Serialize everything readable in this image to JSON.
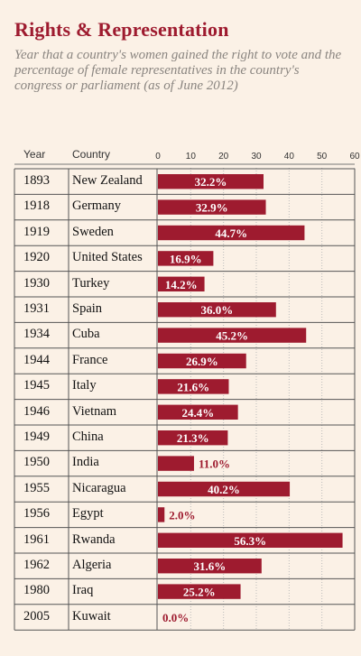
{
  "title": "Rights & Representation",
  "subtitle": "Year that a country's women gained the right to vote and the percentage of female representatives in the country's congress or parliament (as of June 2012)",
  "headers": {
    "year": "Year",
    "country": "Country"
  },
  "colors": {
    "accent": "#9e1b2f",
    "background": "#fbf1e6",
    "subtitle": "#8a8580"
  },
  "chart_data": {
    "type": "bar",
    "orientation": "horizontal",
    "xlim": [
      0,
      60
    ],
    "xticks": [
      "0",
      "10",
      "20",
      "30",
      "40",
      "50",
      "60"
    ],
    "grid": true,
    "rows": [
      {
        "year": "1893",
        "country": "New Zealand",
        "value": 32.2,
        "label": "32.2%"
      },
      {
        "year": "1918",
        "country": "Germany",
        "value": 32.9,
        "label": "32.9%"
      },
      {
        "year": "1919",
        "country": "Sweden",
        "value": 44.7,
        "label": "44.7%"
      },
      {
        "year": "1920",
        "country": "United States",
        "value": 16.9,
        "label": "16.9%"
      },
      {
        "year": "1930",
        "country": "Turkey",
        "value": 14.2,
        "label": "14.2%"
      },
      {
        "year": "1931",
        "country": "Spain",
        "value": 36.0,
        "label": "36.0%"
      },
      {
        "year": "1934",
        "country": "Cuba",
        "value": 45.2,
        "label": "45.2%"
      },
      {
        "year": "1944",
        "country": "France",
        "value": 26.9,
        "label": "26.9%"
      },
      {
        "year": "1945",
        "country": "Italy",
        "value": 21.6,
        "label": "21.6%"
      },
      {
        "year": "1946",
        "country": "Vietnam",
        "value": 24.4,
        "label": "24.4%"
      },
      {
        "year": "1949",
        "country": "China",
        "value": 21.3,
        "label": "21.3%"
      },
      {
        "year": "1950",
        "country": "India",
        "value": 11.0,
        "label": "11.0%"
      },
      {
        "year": "1955",
        "country": "Nicaragua",
        "value": 40.2,
        "label": "40.2%"
      },
      {
        "year": "1956",
        "country": "Egypt",
        "value": 2.0,
        "label": "2.0%"
      },
      {
        "year": "1961",
        "country": "Rwanda",
        "value": 56.3,
        "label": "56.3%"
      },
      {
        "year": "1962",
        "country": "Algeria",
        "value": 31.6,
        "label": "31.6%"
      },
      {
        "year": "1980",
        "country": "Iraq",
        "value": 25.2,
        "label": "25.2%"
      },
      {
        "year": "2005",
        "country": "Kuwait",
        "value": 0.0,
        "label": "0.0%"
      }
    ]
  }
}
